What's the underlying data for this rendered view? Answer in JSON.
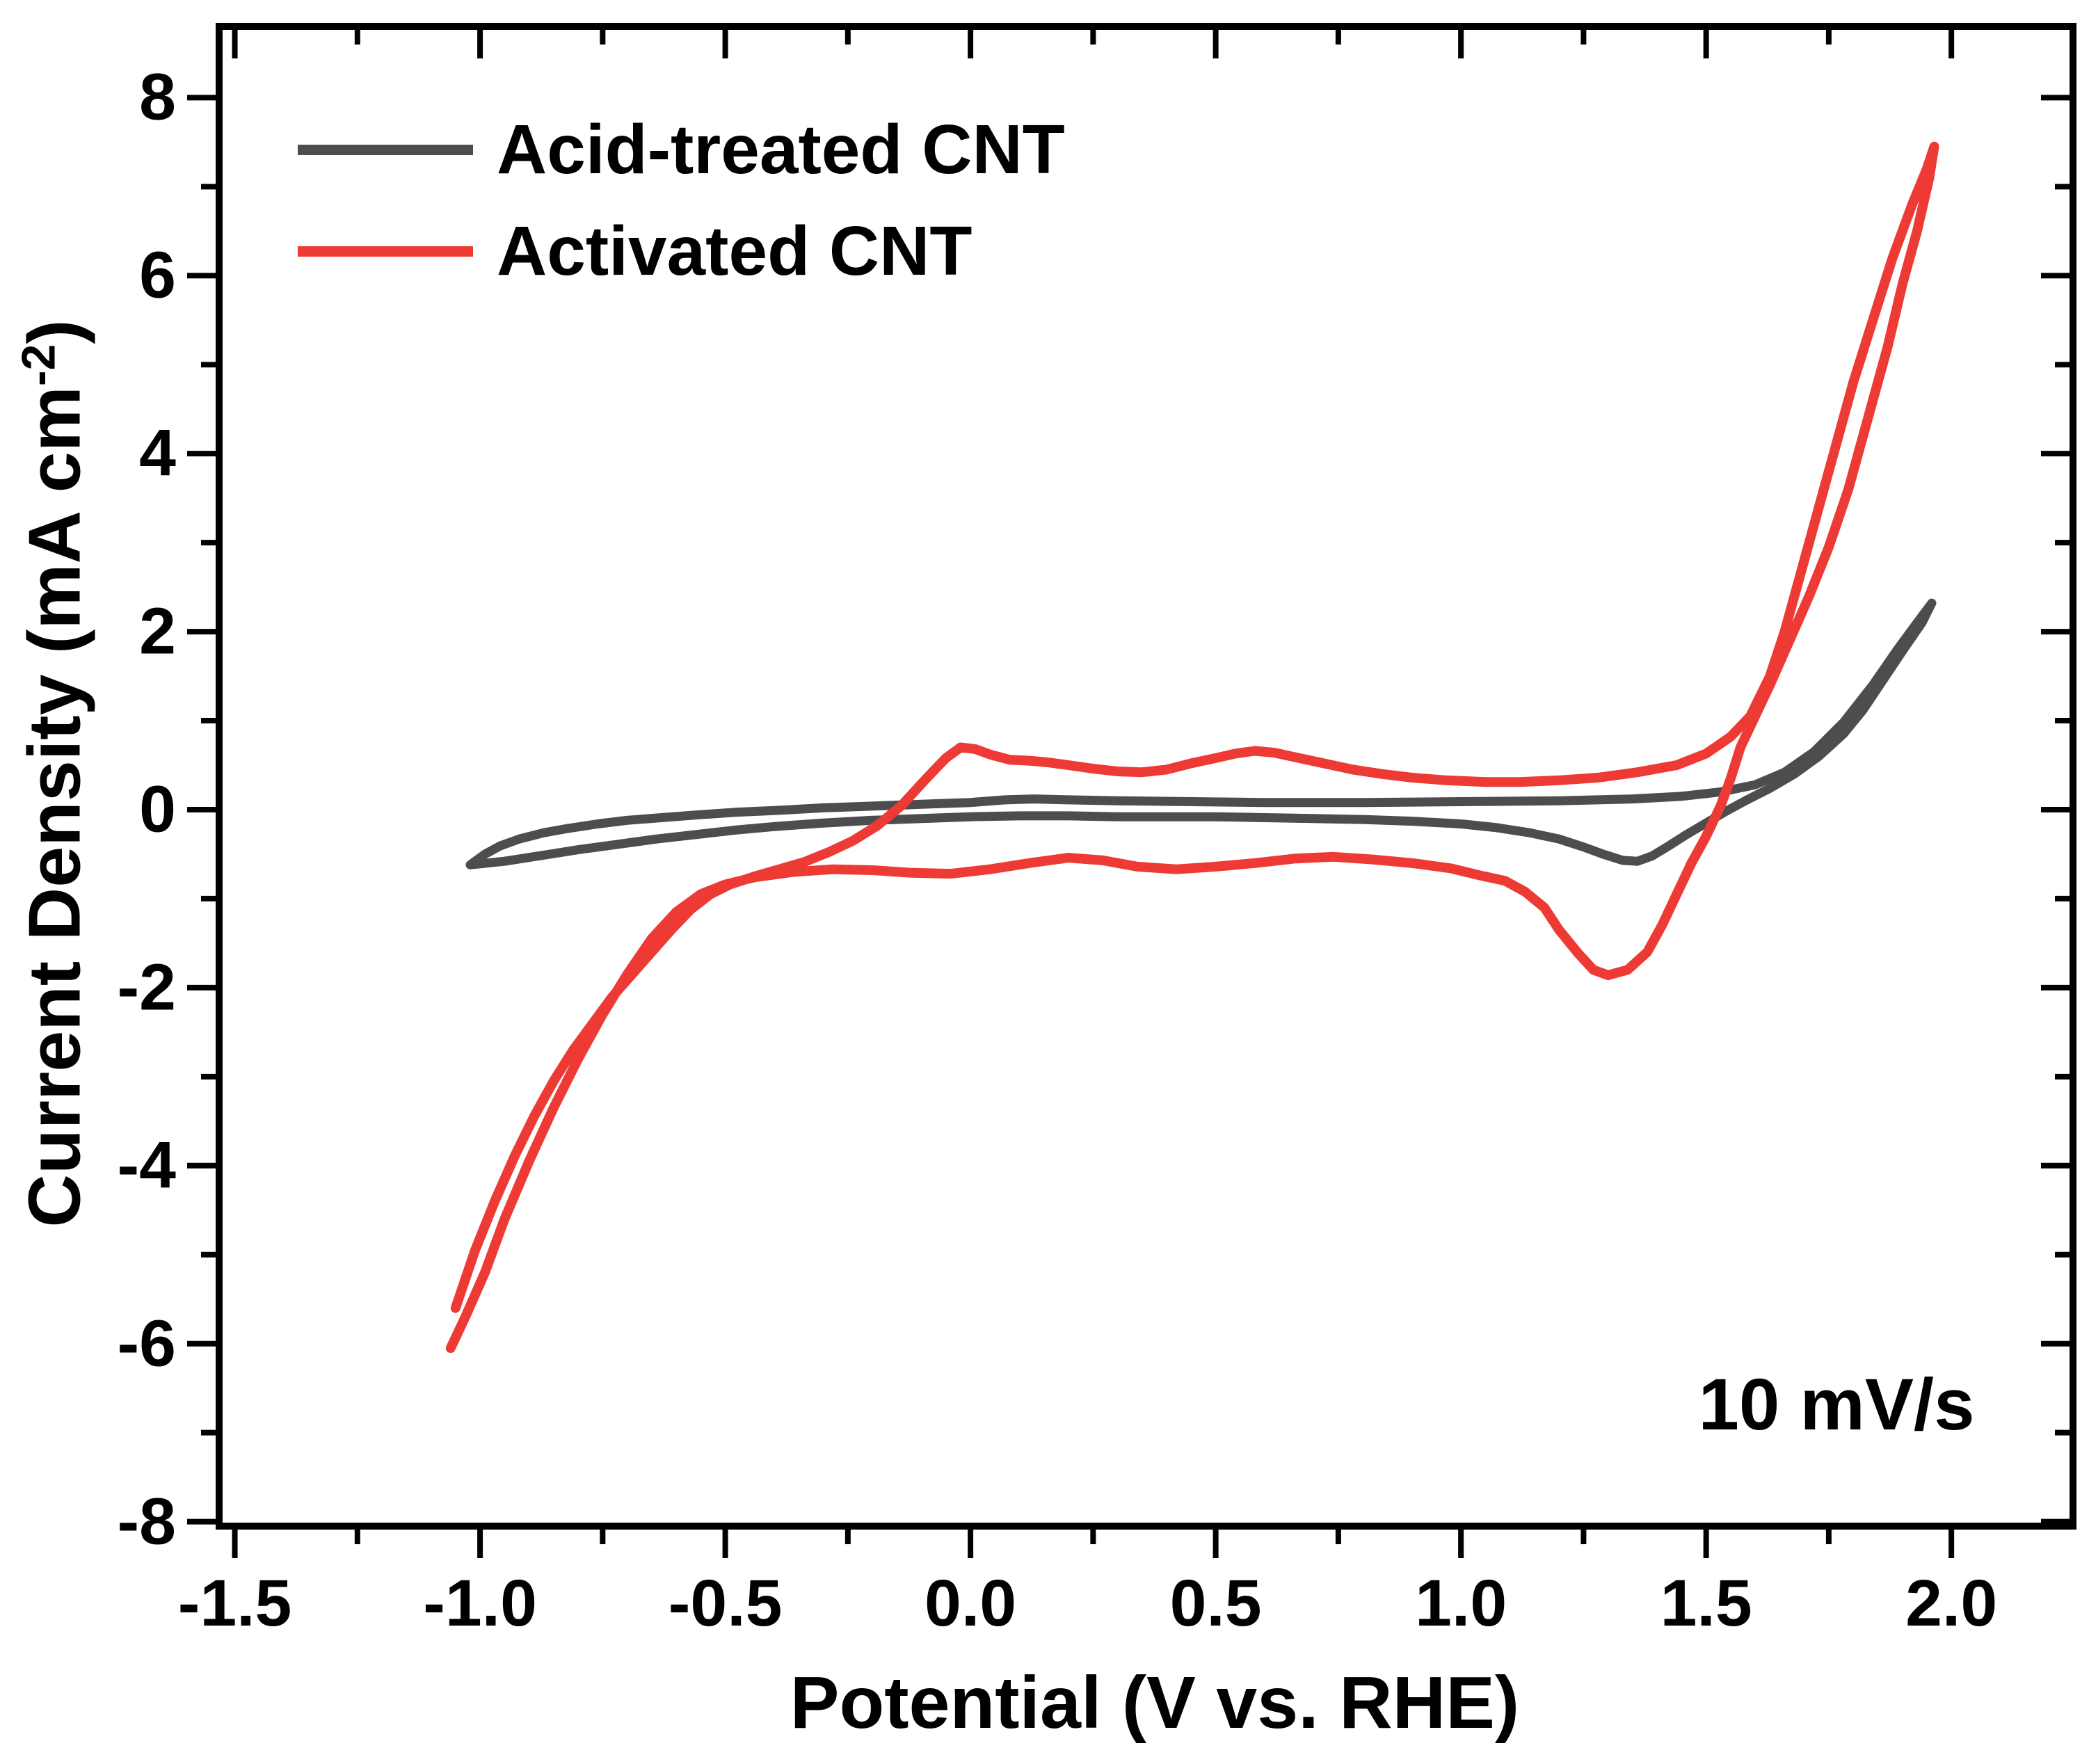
{
  "annotation": {
    "scan_rate_label": "10 mV/s"
  },
  "axis_titles": {
    "x": "Potential (V vs. RHE)",
    "y_main": "Current Density (mA cm",
    "y_sup": "-2",
    "y_close": ")"
  },
  "colors": {
    "frame": "#000000",
    "text": "#000000",
    "background": "#ffffff"
  },
  "chart_data": {
    "type": "line",
    "title": "",
    "xlabel": "Potential (V vs. RHE)",
    "ylabel": "Current Density (mA cm-2)",
    "grid": false,
    "legend_position": "top-left",
    "x_axis": {
      "range": [
        -1.532,
        2.248
      ],
      "major_ticks": [
        -1.5,
        -1.0,
        -0.5,
        0.0,
        0.5,
        1.0,
        1.5,
        2.0
      ],
      "tick_labels": [
        "-1.5",
        "-1.0",
        "-0.5",
        "0.0",
        "0.5",
        "1.0",
        "1.5",
        "2.0"
      ],
      "minor_ticks": [
        -1.25,
        -0.75,
        -0.25,
        0.25,
        0.75,
        1.25,
        1.75,
        2.25
      ]
    },
    "y_axis": {
      "range": [
        -8.05,
        8.8
      ],
      "major_ticks": [
        -8,
        -6,
        -4,
        -2,
        0,
        2,
        4,
        6,
        8
      ],
      "tick_labels": [
        "-8",
        "-6",
        "-4",
        "-2",
        "0",
        "2",
        "4",
        "6",
        "8"
      ],
      "minor_ticks": [
        -7,
        -5,
        -3,
        -1,
        1,
        3,
        5,
        7
      ]
    },
    "series": [
      {
        "name": "Acid-treated CNT",
        "color": "#4d4d4d",
        "line_width": 13,
        "points": [
          [
            -1.02,
            -0.62
          ],
          [
            -0.99,
            -0.5
          ],
          [
            -0.96,
            -0.41
          ],
          [
            -0.92,
            -0.33
          ],
          [
            -0.87,
            -0.26
          ],
          [
            -0.82,
            -0.21
          ],
          [
            -0.76,
            -0.16
          ],
          [
            -0.7,
            -0.12
          ],
          [
            -0.63,
            -0.09
          ],
          [
            -0.56,
            -0.06
          ],
          [
            -0.48,
            -0.03
          ],
          [
            -0.4,
            -0.01
          ],
          [
            -0.3,
            0.02
          ],
          [
            -0.2,
            0.04
          ],
          [
            -0.1,
            0.06
          ],
          [
            0.0,
            0.08
          ],
          [
            0.07,
            0.11
          ],
          [
            0.13,
            0.12
          ],
          [
            0.2,
            0.11
          ],
          [
            0.3,
            0.1
          ],
          [
            0.45,
            0.09
          ],
          [
            0.6,
            0.08
          ],
          [
            0.8,
            0.08
          ],
          [
            1.0,
            0.09
          ],
          [
            1.2,
            0.1
          ],
          [
            1.35,
            0.12
          ],
          [
            1.45,
            0.15
          ],
          [
            1.53,
            0.2
          ],
          [
            1.6,
            0.28
          ],
          [
            1.66,
            0.42
          ],
          [
            1.72,
            0.65
          ],
          [
            1.78,
            0.98
          ],
          [
            1.84,
            1.4
          ],
          [
            1.89,
            1.8
          ],
          [
            1.93,
            2.1
          ],
          [
            1.96,
            2.32
          ],
          [
            1.94,
            2.1
          ],
          [
            1.9,
            1.78
          ],
          [
            1.86,
            1.45
          ],
          [
            1.82,
            1.12
          ],
          [
            1.78,
            0.85
          ],
          [
            1.73,
            0.6
          ],
          [
            1.68,
            0.4
          ],
          [
            1.63,
            0.24
          ],
          [
            1.58,
            0.1
          ],
          [
            1.54,
            -0.02
          ],
          [
            1.5,
            -0.15
          ],
          [
            1.46,
            -0.28
          ],
          [
            1.42,
            -0.42
          ],
          [
            1.39,
            -0.52
          ],
          [
            1.36,
            -0.58
          ],
          [
            1.33,
            -0.57
          ],
          [
            1.29,
            -0.5
          ],
          [
            1.25,
            -0.42
          ],
          [
            1.2,
            -0.33
          ],
          [
            1.14,
            -0.26
          ],
          [
            1.07,
            -0.2
          ],
          [
            1.0,
            -0.16
          ],
          [
            0.9,
            -0.13
          ],
          [
            0.8,
            -0.11
          ],
          [
            0.7,
            -0.1
          ],
          [
            0.6,
            -0.09
          ],
          [
            0.5,
            -0.08
          ],
          [
            0.4,
            -0.08
          ],
          [
            0.3,
            -0.08
          ],
          [
            0.2,
            -0.07
          ],
          [
            0.1,
            -0.07
          ],
          [
            0.0,
            -0.08
          ],
          [
            -0.1,
            -0.1
          ],
          [
            -0.2,
            -0.12
          ],
          [
            -0.3,
            -0.15
          ],
          [
            -0.4,
            -0.19
          ],
          [
            -0.48,
            -0.23
          ],
          [
            -0.56,
            -0.28
          ],
          [
            -0.64,
            -0.33
          ],
          [
            -0.72,
            -0.39
          ],
          [
            -0.8,
            -0.45
          ],
          [
            -0.88,
            -0.52
          ],
          [
            -0.95,
            -0.58
          ],
          [
            -1.02,
            -0.62
          ]
        ]
      },
      {
        "name": "Activated CNT",
        "color": "#ee3a34",
        "line_width": 14,
        "points": [
          [
            -1.05,
            -5.6
          ],
          [
            -1.01,
            -4.95
          ],
          [
            -0.97,
            -4.4
          ],
          [
            -0.93,
            -3.9
          ],
          [
            -0.89,
            -3.45
          ],
          [
            -0.85,
            -3.05
          ],
          [
            -0.81,
            -2.7
          ],
          [
            -0.77,
            -2.4
          ],
          [
            -0.73,
            -2.1
          ],
          [
            -0.69,
            -1.85
          ],
          [
            -0.65,
            -1.6
          ],
          [
            -0.61,
            -1.35
          ],
          [
            -0.57,
            -1.12
          ],
          [
            -0.53,
            -0.95
          ],
          [
            -0.49,
            -0.84
          ],
          [
            -0.44,
            -0.75
          ],
          [
            -0.39,
            -0.67
          ],
          [
            -0.34,
            -0.59
          ],
          [
            -0.29,
            -0.48
          ],
          [
            -0.24,
            -0.35
          ],
          [
            -0.19,
            -0.18
          ],
          [
            -0.14,
            0.05
          ],
          [
            -0.09,
            0.35
          ],
          [
            -0.05,
            0.58
          ],
          [
            -0.02,
            0.7
          ],
          [
            0.01,
            0.68
          ],
          [
            0.04,
            0.62
          ],
          [
            0.08,
            0.56
          ],
          [
            0.12,
            0.55
          ],
          [
            0.16,
            0.53
          ],
          [
            0.2,
            0.5
          ],
          [
            0.25,
            0.46
          ],
          [
            0.3,
            0.43
          ],
          [
            0.35,
            0.42
          ],
          [
            0.4,
            0.45
          ],
          [
            0.45,
            0.52
          ],
          [
            0.5,
            0.58
          ],
          [
            0.54,
            0.63
          ],
          [
            0.58,
            0.66
          ],
          [
            0.62,
            0.64
          ],
          [
            0.67,
            0.58
          ],
          [
            0.72,
            0.52
          ],
          [
            0.78,
            0.45
          ],
          [
            0.84,
            0.4
          ],
          [
            0.9,
            0.36
          ],
          [
            0.97,
            0.33
          ],
          [
            1.05,
            0.31
          ],
          [
            1.12,
            0.31
          ],
          [
            1.2,
            0.33
          ],
          [
            1.28,
            0.36
          ],
          [
            1.36,
            0.42
          ],
          [
            1.44,
            0.5
          ],
          [
            1.5,
            0.63
          ],
          [
            1.55,
            0.82
          ],
          [
            1.59,
            1.05
          ],
          [
            1.63,
            1.5
          ],
          [
            1.66,
            2.0
          ],
          [
            1.69,
            2.6
          ],
          [
            1.72,
            3.2
          ],
          [
            1.76,
            4.0
          ],
          [
            1.8,
            4.8
          ],
          [
            1.84,
            5.5
          ],
          [
            1.88,
            6.2
          ],
          [
            1.92,
            6.8
          ],
          [
            1.95,
            7.2
          ],
          [
            1.965,
            7.45
          ],
          [
            1.955,
            7.1
          ],
          [
            1.93,
            6.5
          ],
          [
            1.9,
            5.9
          ],
          [
            1.87,
            5.2
          ],
          [
            1.83,
            4.4
          ],
          [
            1.79,
            3.6
          ],
          [
            1.75,
            2.95
          ],
          [
            1.71,
            2.4
          ],
          [
            1.67,
            1.9
          ],
          [
            1.63,
            1.4
          ],
          [
            1.6,
            1.05
          ],
          [
            1.57,
            0.7
          ],
          [
            1.55,
            0.35
          ],
          [
            1.53,
            0.05
          ],
          [
            1.5,
            -0.3
          ],
          [
            1.47,
            -0.6
          ],
          [
            1.44,
            -0.95
          ],
          [
            1.41,
            -1.3
          ],
          [
            1.38,
            -1.6
          ],
          [
            1.34,
            -1.8
          ],
          [
            1.3,
            -1.86
          ],
          [
            1.27,
            -1.8
          ],
          [
            1.24,
            -1.62
          ],
          [
            1.2,
            -1.35
          ],
          [
            1.17,
            -1.1
          ],
          [
            1.13,
            -0.92
          ],
          [
            1.09,
            -0.8
          ],
          [
            1.04,
            -0.74
          ],
          [
            0.98,
            -0.66
          ],
          [
            0.9,
            -0.6
          ],
          [
            0.82,
            -0.56
          ],
          [
            0.74,
            -0.53
          ],
          [
            0.66,
            -0.55
          ],
          [
            0.58,
            -0.6
          ],
          [
            0.5,
            -0.64
          ],
          [
            0.42,
            -0.67
          ],
          [
            0.34,
            -0.64
          ],
          [
            0.27,
            -0.57
          ],
          [
            0.2,
            -0.54
          ],
          [
            0.12,
            -0.6
          ],
          [
            0.04,
            -0.67
          ],
          [
            -0.04,
            -0.72
          ],
          [
            -0.12,
            -0.71
          ],
          [
            -0.2,
            -0.68
          ],
          [
            -0.28,
            -0.67
          ],
          [
            -0.36,
            -0.7
          ],
          [
            -0.44,
            -0.76
          ],
          [
            -0.5,
            -0.84
          ],
          [
            -0.55,
            -0.95
          ],
          [
            -0.6,
            -1.15
          ],
          [
            -0.65,
            -1.45
          ],
          [
            -0.7,
            -1.85
          ],
          [
            -0.75,
            -2.3
          ],
          [
            -0.8,
            -2.8
          ],
          [
            -0.85,
            -3.35
          ],
          [
            -0.9,
            -3.95
          ],
          [
            -0.95,
            -4.6
          ],
          [
            -0.99,
            -5.2
          ],
          [
            -1.03,
            -5.7
          ],
          [
            -1.06,
            -6.05
          ]
        ]
      }
    ]
  }
}
